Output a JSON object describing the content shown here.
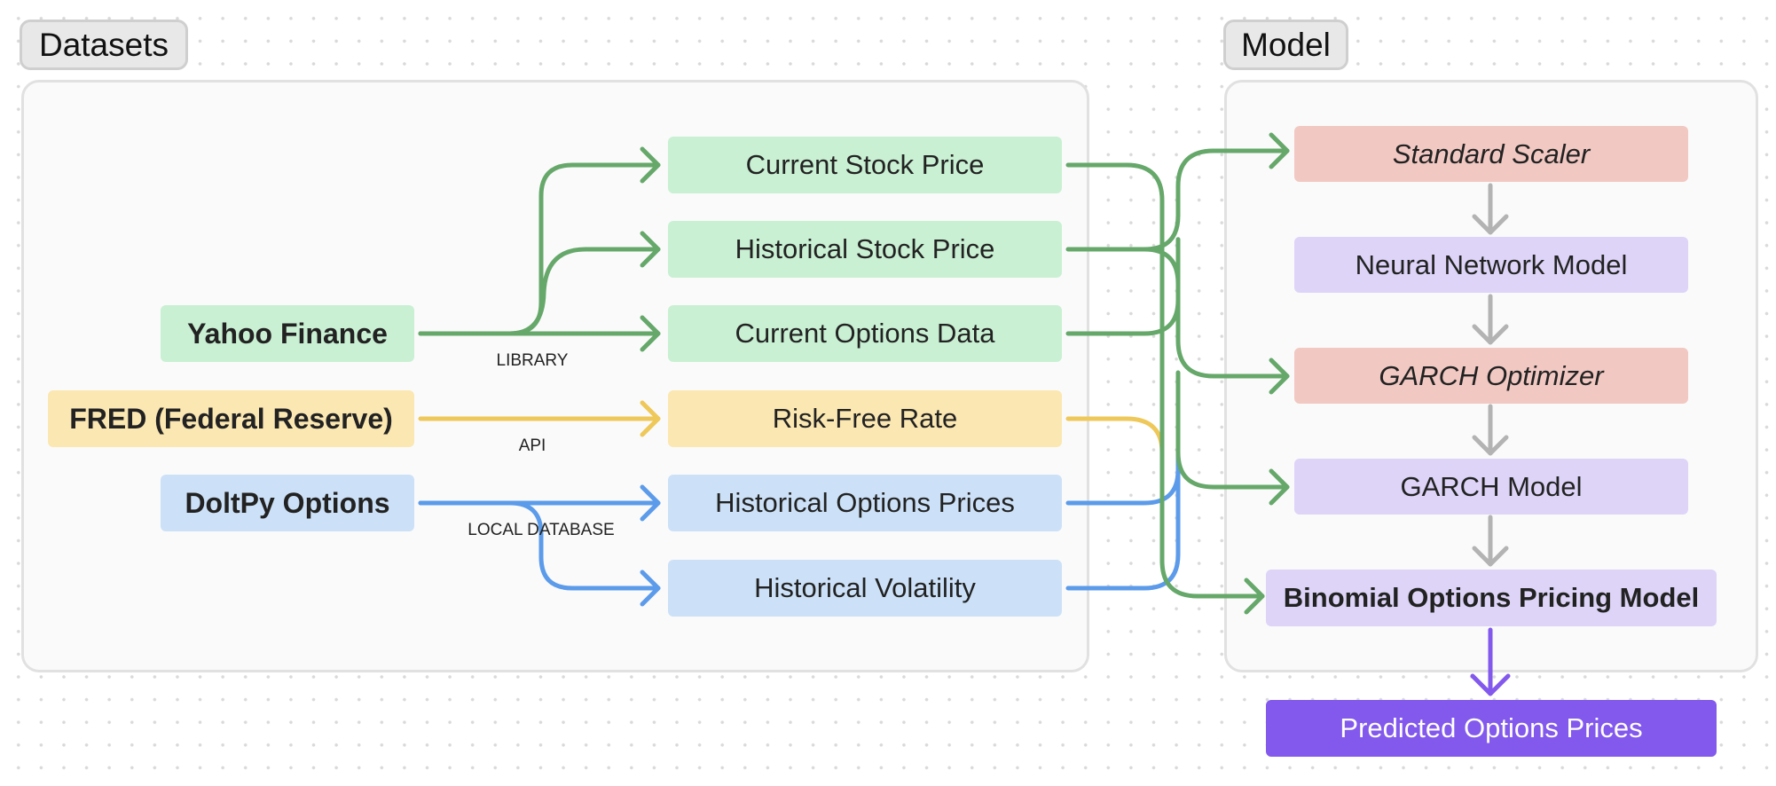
{
  "groups": {
    "datasets": "Datasets",
    "model": "Model"
  },
  "sources": {
    "yahoo": "Yahoo Finance",
    "fred": "FRED (Federal Reserve)",
    "doltpy": "DoltPy Options"
  },
  "edge_labels": {
    "yahoo": "LIBRARY",
    "fred": "API",
    "doltpy": "LOCAL DATABASE"
  },
  "data_nodes": {
    "current_stock": "Current Stock Price",
    "historical_stock": "Historical Stock Price",
    "current_options": "Current Options Data",
    "risk_free": "Risk-Free Rate",
    "historical_options": "Historical Options Prices",
    "historical_vol": "Historical Volatility"
  },
  "model_nodes": {
    "scaler": "Standard Scaler",
    "nn": "Neural Network Model",
    "garch_opt": "GARCH Optimizer",
    "garch_model": "GARCH Model",
    "binomial": "Binomial Options Pricing Model"
  },
  "output": "Predicted Options Prices",
  "colors": {
    "green": "#65a86a",
    "yellow": "#efc85a",
    "blue": "#5b9bea",
    "gray": "#b3b3b3",
    "purple": "#8259ec"
  }
}
